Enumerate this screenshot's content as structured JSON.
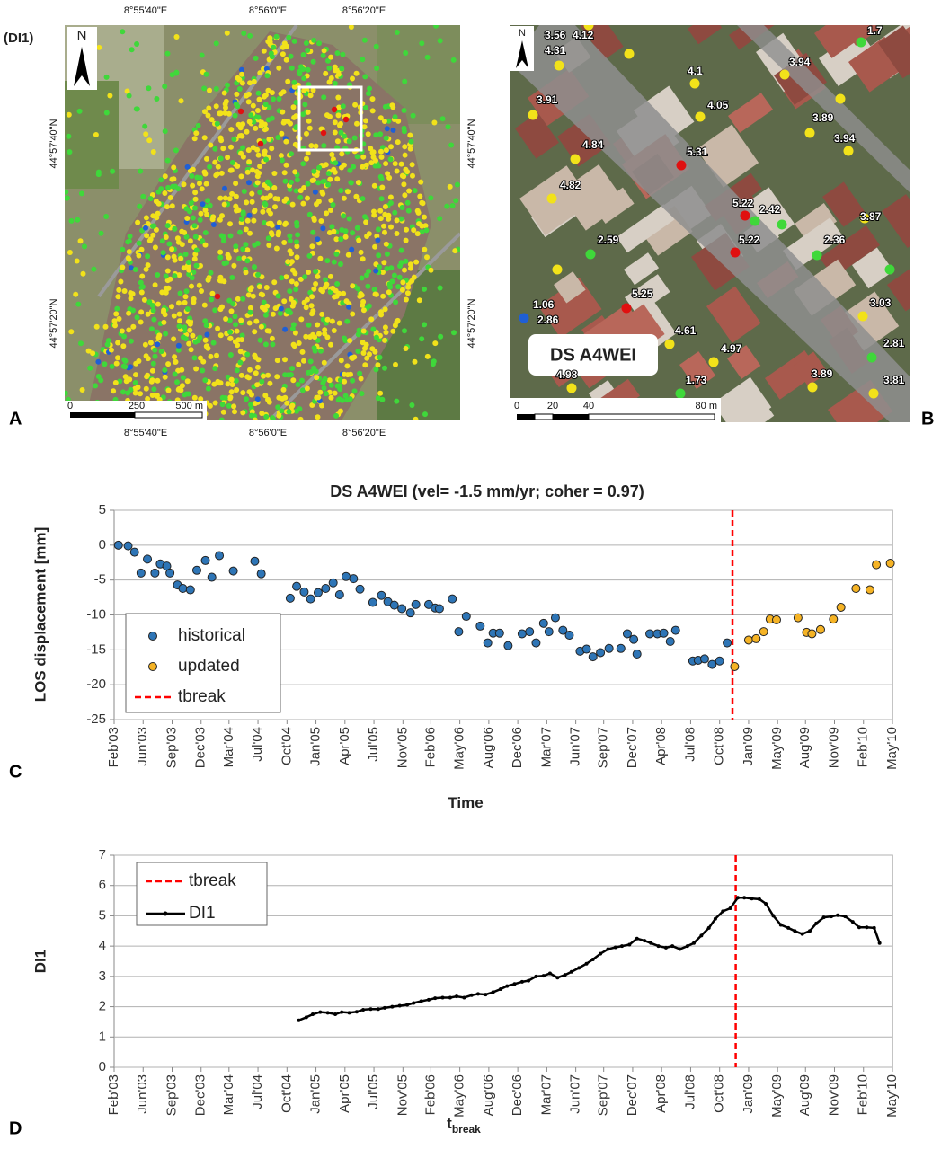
{
  "figure_tag": "(DI1)",
  "panel_labels": [
    "A",
    "B",
    "C",
    "D"
  ],
  "map_a": {
    "north": "N",
    "top_lon": [
      "8°55'40\"E",
      "8°56'0\"E",
      "8°56'20\"E"
    ],
    "bottom_lon": [
      "8°55'40\"E",
      "8°56'0\"E",
      "8°56'20\"E"
    ],
    "left_lat": [
      "44°57'40\"N",
      "44°57'20\"N"
    ],
    "right_lat": [
      "44°57'40\"N",
      "44°57'20\"N"
    ],
    "scale": [
      "0",
      "250",
      "500 m"
    ]
  },
  "map_b": {
    "north": "N",
    "labels": [
      "1.7",
      "3.56",
      "4.12",
      "4.31",
      "3.94",
      "4.1",
      "3.91",
      "4.05",
      "3.89",
      "3.94",
      "4.84",
      "5.31",
      "4.82",
      "5.22",
      "2.42",
      "3.87",
      "2.59",
      "5.22",
      "2.36",
      "5.25",
      "1.06",
      "2.86",
      "3.03",
      "4.61",
      "4.97",
      "2.81",
      "4.98",
      "1.73",
      "3.89",
      "3.81"
    ],
    "box_label": "DS A4WEI",
    "scale": [
      "0",
      "20",
      "40",
      "80 m"
    ]
  },
  "chart_data": [
    {
      "type": "scatter",
      "title": "DS A4WEI (vel= -1.5 mm/yr; coher = 0.97)",
      "x_label": "Time",
      "y_label": "LOS displacement [mm]",
      "xlim": [
        2003.1,
        2010.35
      ],
      "ylim": [
        -25,
        5
      ],
      "yticks": [
        -25,
        -20,
        -15,
        -10,
        -5,
        0,
        5
      ],
      "xticks": [
        {
          "value": 2003.1,
          "label": "Feb'03"
        },
        {
          "value": 2003.37,
          "label": "Jun'03"
        },
        {
          "value": 2003.64,
          "label": "Sep'03"
        },
        {
          "value": 2003.91,
          "label": "Dec'03"
        },
        {
          "value": 2004.17,
          "label": "Mar'04"
        },
        {
          "value": 2004.44,
          "label": "Jul'04"
        },
        {
          "value": 2004.71,
          "label": "Oct'04"
        },
        {
          "value": 2004.98,
          "label": "Jan'05"
        },
        {
          "value": 2005.25,
          "label": "Apr'05"
        },
        {
          "value": 2005.52,
          "label": "Jul'05"
        },
        {
          "value": 2005.79,
          "label": "Nov'05"
        },
        {
          "value": 2006.05,
          "label": "Feb'06"
        },
        {
          "value": 2006.32,
          "label": "May'06"
        },
        {
          "value": 2006.59,
          "label": "Aug'06"
        },
        {
          "value": 2006.86,
          "label": "Dec'06"
        },
        {
          "value": 2007.13,
          "label": "Mar'07"
        },
        {
          "value": 2007.4,
          "label": "Jun'07"
        },
        {
          "value": 2007.66,
          "label": "Sep'07"
        },
        {
          "value": 2007.93,
          "label": "Dec'07"
        },
        {
          "value": 2008.2,
          "label": "Apr'08"
        },
        {
          "value": 2008.47,
          "label": "Jul'08"
        },
        {
          "value": 2008.74,
          "label": "Oct'08"
        },
        {
          "value": 2009.01,
          "label": "Jan'09"
        },
        {
          "value": 2009.28,
          "label": "May'09"
        },
        {
          "value": 2009.54,
          "label": "Aug'09"
        },
        {
          "value": 2009.81,
          "label": "Nov'09"
        },
        {
          "value": 2010.08,
          "label": "Feb'10"
        },
        {
          "value": 2010.35,
          "label": "May'10"
        }
      ],
      "grid": true,
      "legend": "lower left",
      "series": [
        {
          "name": "historical",
          "color": "#2e75b6",
          "x": [
            2003.14,
            2003.23,
            2003.29,
            2003.35,
            2003.41,
            2003.48,
            2003.53,
            2003.59,
            2003.62,
            2003.69,
            2003.74,
            2003.81,
            2003.87,
            2003.95,
            2004.01,
            2004.08,
            2004.21,
            2004.41,
            2004.47,
            2004.74,
            2004.8,
            2004.87,
            2004.93,
            2005.0,
            2005.07,
            2005.14,
            2005.2,
            2005.26,
            2005.33,
            2005.39,
            2005.51,
            2005.59,
            2005.65,
            2005.71,
            2005.78,
            2005.86,
            2005.91,
            2006.03,
            2006.09,
            2006.13,
            2006.25,
            2006.31,
            2006.38,
            2006.51,
            2006.58,
            2006.63,
            2006.69,
            2006.77,
            2006.9,
            2006.97,
            2007.03,
            2007.1,
            2007.15,
            2007.21,
            2007.28,
            2007.34,
            2007.44,
            2007.5,
            2007.56,
            2007.63,
            2007.71,
            2007.82,
            2007.88,
            2007.94,
            2007.97,
            2008.09,
            2008.16,
            2008.22,
            2008.28,
            2008.33,
            2008.49,
            2008.54,
            2008.6,
            2008.67,
            2008.74,
            2008.81
          ],
          "values": [
            0,
            -0.1,
            -1,
            -4,
            -2,
            -4,
            -2.7,
            -3,
            -4,
            -5.7,
            -6.2,
            -6.4,
            -3.6,
            -2.2,
            -4.6,
            -1.5,
            -3.7,
            -2.3,
            -4.1,
            -7.6,
            -5.9,
            -6.7,
            -7.7,
            -6.8,
            -6.2,
            -5.4,
            -7.1,
            -4.5,
            -4.8,
            -6.3,
            -8.2,
            -7.2,
            -8.1,
            -8.6,
            -9.1,
            -9.7,
            -8.5,
            -8.5,
            -9.0,
            -9.1,
            -7.7,
            -12.4,
            -10.2,
            -11.6,
            -14.0,
            -12.6,
            -12.6,
            -14.4,
            -12.7,
            -12.4,
            -14.0,
            -11.2,
            -12.4,
            -10.4,
            -12.2,
            -12.9,
            -15.2,
            -14.9,
            -16.0,
            -15.4,
            -14.8,
            -14.8,
            -12.7,
            -13.5,
            -15.6,
            -12.7,
            -12.7,
            -12.6,
            -13.8,
            -12.2,
            -16.6,
            -16.5,
            -16.3,
            -17.1,
            -16.6,
            -14.0
          ]
        },
        {
          "name": "updated",
          "color": "#f5b325",
          "x": [
            2008.88,
            2009.01,
            2009.08,
            2009.15,
            2009.21,
            2009.27,
            2009.47,
            2009.55,
            2009.6,
            2009.68,
            2009.8,
            2009.87,
            2010.01,
            2010.14,
            2010.2,
            2010.33
          ],
          "values": [
            -17.4,
            -13.6,
            -13.4,
            -12.4,
            -10.6,
            -10.7,
            -10.4,
            -12.5,
            -12.7,
            -12.1,
            -10.6,
            -8.9,
            -6.2,
            -6.4,
            -2.8,
            -2.6
          ]
        }
      ],
      "vlines": [
        {
          "name": "tbreak",
          "color": "#ff0000",
          "x": 2008.86
        }
      ]
    },
    {
      "type": "line",
      "x_label": "t",
      "x_label_sub": "break",
      "y_label": "DI1",
      "xlim": [
        2003.1,
        2010.35
      ],
      "ylim": [
        0,
        7
      ],
      "yticks": [
        0,
        1,
        2,
        3,
        4,
        5,
        6,
        7
      ],
      "xticks": [
        {
          "value": 2003.1,
          "label": "Feb'03"
        },
        {
          "value": 2003.37,
          "label": "Jun'03"
        },
        {
          "value": 2003.64,
          "label": "Sep'03"
        },
        {
          "value": 2003.91,
          "label": "Dec'03"
        },
        {
          "value": 2004.17,
          "label": "Mar'04"
        },
        {
          "value": 2004.44,
          "label": "Jul'04"
        },
        {
          "value": 2004.71,
          "label": "Oct'04"
        },
        {
          "value": 2004.98,
          "label": "Jan'05"
        },
        {
          "value": 2005.25,
          "label": "Apr'05"
        },
        {
          "value": 2005.52,
          "label": "Jul'05"
        },
        {
          "value": 2005.79,
          "label": "Nov'05"
        },
        {
          "value": 2006.05,
          "label": "Feb'06"
        },
        {
          "value": 2006.32,
          "label": "May'06"
        },
        {
          "value": 2006.59,
          "label": "Aug'06"
        },
        {
          "value": 2006.86,
          "label": "Dec'06"
        },
        {
          "value": 2007.13,
          "label": "Mar'07"
        },
        {
          "value": 2007.4,
          "label": "Jun'07"
        },
        {
          "value": 2007.66,
          "label": "Sep'07"
        },
        {
          "value": 2007.93,
          "label": "Dec'07"
        },
        {
          "value": 2008.2,
          "label": "Apr'08"
        },
        {
          "value": 2008.47,
          "label": "Jul'08"
        },
        {
          "value": 2008.74,
          "label": "Oct'08"
        },
        {
          "value": 2009.01,
          "label": "Jan'09"
        },
        {
          "value": 2009.28,
          "label": "May'09"
        },
        {
          "value": 2009.54,
          "label": "Aug'09"
        },
        {
          "value": 2009.81,
          "label": "Nov'09"
        },
        {
          "value": 2010.08,
          "label": "Feb'10"
        },
        {
          "value": 2010.35,
          "label": "May'10"
        }
      ],
      "grid": true,
      "legend": "upper left",
      "series": [
        {
          "name": "DI1",
          "color": "#000000",
          "x": [
            2004.82,
            2004.89,
            2004.95,
            2005.02,
            2005.09,
            2005.16,
            2005.22,
            2005.29,
            2005.36,
            2005.42,
            2005.49,
            2005.56,
            2005.62,
            2005.69,
            2005.76,
            2005.83,
            2005.89,
            2005.96,
            2006.03,
            2006.09,
            2006.16,
            2006.23,
            2006.29,
            2006.36,
            2006.43,
            2006.49,
            2006.56,
            2006.63,
            2006.7,
            2006.76,
            2006.83,
            2006.9,
            2006.96,
            2007.03,
            2007.1,
            2007.16,
            2007.23,
            2007.3,
            2007.36,
            2007.43,
            2007.5,
            2007.56,
            2007.63,
            2007.7,
            2007.77,
            2007.83,
            2007.9,
            2007.97,
            2008.04,
            2008.1,
            2008.17,
            2008.24,
            2008.3,
            2008.37,
            2008.44,
            2008.5,
            2008.57,
            2008.64,
            2008.7,
            2008.77,
            2008.84,
            2008.91,
            2008.97,
            2009.04,
            2009.11,
            2009.17,
            2009.24,
            2009.31,
            2009.38,
            2009.44,
            2009.51,
            2009.58,
            2009.64,
            2009.71,
            2009.78,
            2009.84,
            2009.91,
            2009.98,
            2010.04,
            2010.11,
            2010.18,
            2010.23
          ],
          "values": [
            1.55,
            1.65,
            1.75,
            1.82,
            1.8,
            1.75,
            1.82,
            1.8,
            1.83,
            1.9,
            1.92,
            1.92,
            1.96,
            2.0,
            2.03,
            2.06,
            2.12,
            2.18,
            2.23,
            2.28,
            2.3,
            2.3,
            2.34,
            2.3,
            2.38,
            2.42,
            2.4,
            2.48,
            2.58,
            2.68,
            2.75,
            2.82,
            2.86,
            3.0,
            3.02,
            3.1,
            2.96,
            3.05,
            3.15,
            3.28,
            3.42,
            3.56,
            3.75,
            3.9,
            3.96,
            4.0,
            4.05,
            4.25,
            4.18,
            4.1,
            4.0,
            3.95,
            4.0,
            3.9,
            4.0,
            4.1,
            4.35,
            4.6,
            4.9,
            5.15,
            5.25,
            5.6,
            5.6,
            5.57,
            5.55,
            5.4,
            5.0,
            4.7,
            4.6,
            4.5,
            4.4,
            4.5,
            4.75,
            4.95,
            4.98,
            5.02,
            4.98,
            4.8,
            4.62,
            4.62,
            4.6,
            4.1
          ]
        }
      ],
      "vlines": [
        {
          "name": "tbreak",
          "color": "#ff0000",
          "x": 2008.89
        }
      ]
    }
  ]
}
